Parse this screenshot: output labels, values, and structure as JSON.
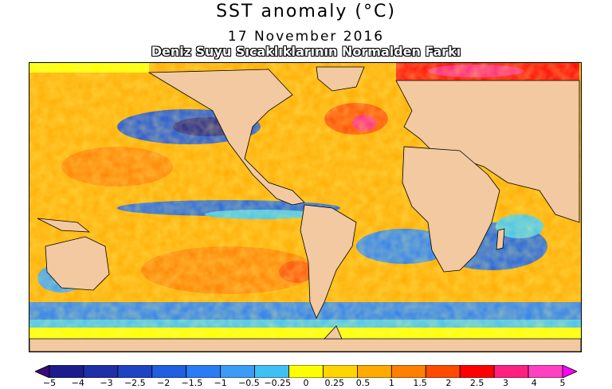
{
  "title": "SST anomaly (°C)",
  "date": "17 November 2016",
  "subtitle": "Deniz Suyu Sıcaklıklarının Normalden Farkı",
  "map": {
    "land_color": "#f2c9a0",
    "border_color": "#000000"
  },
  "legend": {
    "colors": [
      "#3a0a78",
      "#1c1c8c",
      "#1f2fa8",
      "#1e44c2",
      "#1f5fe0",
      "#2a7cf5",
      "#3a9cf7",
      "#3fc0f5",
      "#ffff00",
      "#ffd400",
      "#ffaa00",
      "#ff8000",
      "#ff4a00",
      "#ff0000",
      "#ff2080",
      "#ff40c0",
      "#ff00ff"
    ],
    "ticks": [
      "−5",
      "−4",
      "−3",
      "−2.5",
      "−2",
      "−1.5",
      "−1",
      "−0.5",
      "−0.25",
      "0",
      "0.25",
      "0.5",
      "1",
      "1.5",
      "2",
      "2.5",
      "3",
      "4",
      "5"
    ]
  }
}
